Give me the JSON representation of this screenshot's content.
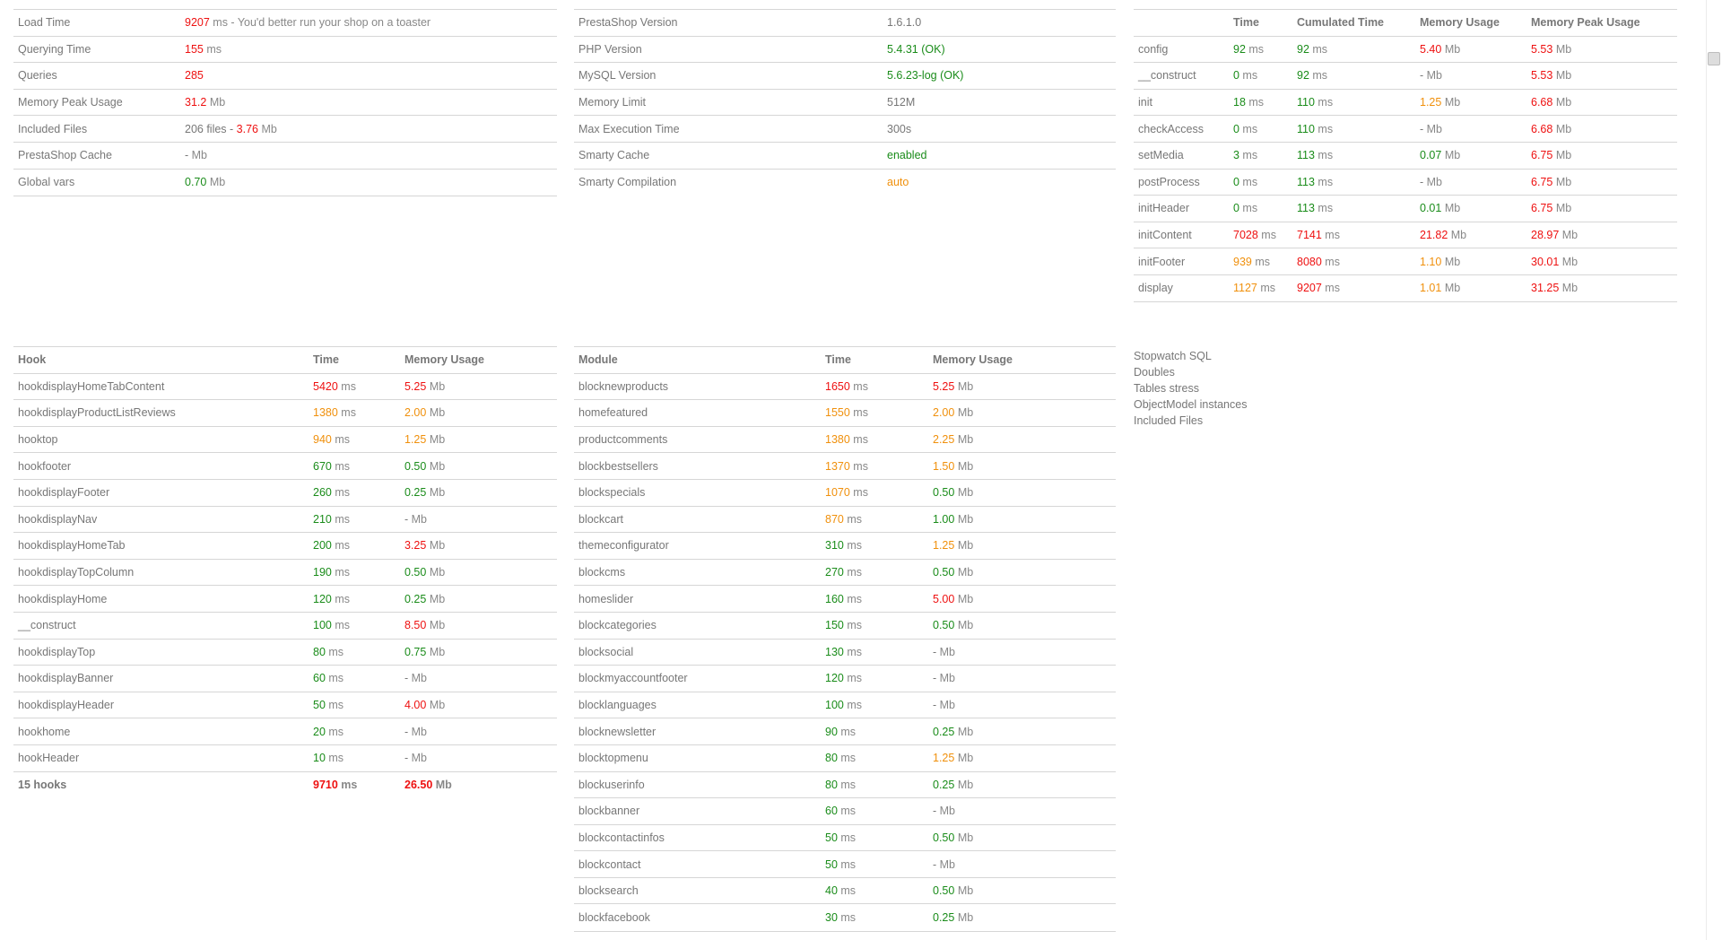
{
  "colors": {
    "good": "#1a8c1a",
    "warn": "#f0900c",
    "bad": "#ee1111",
    "text": "#777777",
    "border": "#d6d6d6"
  },
  "summary": [
    {
      "label": "Load Time",
      "value": "9207",
      "status": "bad",
      "unit": " ms - You'd better run your shop on a toaster"
    },
    {
      "label": "Querying Time",
      "value": "155",
      "status": "bad",
      "unit": " ms"
    },
    {
      "label": "Queries",
      "value": "285",
      "status": "bad",
      "unit": ""
    },
    {
      "label": "Memory Peak Usage",
      "value": "31.2",
      "status": "bad",
      "unit": " Mb"
    },
    {
      "label": "Included Files",
      "prefix": "206 files - ",
      "value": "3.76",
      "status": "bad",
      "unit": " Mb"
    },
    {
      "label": "PrestaShop Cache",
      "value": "-",
      "status": "none",
      "unit": " Mb"
    },
    {
      "label": "Global vars",
      "value": "0.70",
      "status": "good",
      "unit": " Mb"
    }
  ],
  "config": [
    {
      "label": "PrestaShop Version",
      "value": "1.6.1.0",
      "status": "none"
    },
    {
      "label": "PHP Version",
      "value": "5.4.31 (OK)",
      "status": "good"
    },
    {
      "label": "MySQL Version",
      "value": "5.6.23-log (OK)",
      "status": "good"
    },
    {
      "label": "Memory Limit",
      "value": "512M",
      "status": "none"
    },
    {
      "label": "Max Execution Time",
      "value": "300s",
      "status": "none"
    },
    {
      "label": "Smarty Cache",
      "value": "enabled",
      "status": "good"
    },
    {
      "label": "Smarty Compilation",
      "value": "auto",
      "status": "warn"
    }
  ],
  "steps": {
    "headers": [
      "",
      "Time",
      "Cumulated Time",
      "Memory Usage",
      "Memory Peak Usage"
    ],
    "rows": [
      {
        "name": "config",
        "time": "92",
        "time_s": "good",
        "cum": "92",
        "cum_s": "good",
        "mem": "5.40",
        "mem_s": "bad",
        "peak": "5.53",
        "peak_s": "bad"
      },
      {
        "name": "__construct",
        "time": "0",
        "time_s": "good",
        "cum": "92",
        "cum_s": "good",
        "mem": "-",
        "mem_s": "none",
        "peak": "5.53",
        "peak_s": "bad"
      },
      {
        "name": "init",
        "time": "18",
        "time_s": "good",
        "cum": "110",
        "cum_s": "good",
        "mem": "1.25",
        "mem_s": "warn",
        "peak": "6.68",
        "peak_s": "bad"
      },
      {
        "name": "checkAccess",
        "time": "0",
        "time_s": "good",
        "cum": "110",
        "cum_s": "good",
        "mem": "-",
        "mem_s": "none",
        "peak": "6.68",
        "peak_s": "bad"
      },
      {
        "name": "setMedia",
        "time": "3",
        "time_s": "good",
        "cum": "113",
        "cum_s": "good",
        "mem": "0.07",
        "mem_s": "good",
        "peak": "6.75",
        "peak_s": "bad"
      },
      {
        "name": "postProcess",
        "time": "0",
        "time_s": "good",
        "cum": "113",
        "cum_s": "good",
        "mem": "-",
        "mem_s": "none",
        "peak": "6.75",
        "peak_s": "bad"
      },
      {
        "name": "initHeader",
        "time": "0",
        "time_s": "good",
        "cum": "113",
        "cum_s": "good",
        "mem": "0.01",
        "mem_s": "good",
        "peak": "6.75",
        "peak_s": "bad"
      },
      {
        "name": "initContent",
        "time": "7028",
        "time_s": "bad",
        "cum": "7141",
        "cum_s": "bad",
        "mem": "21.82",
        "mem_s": "bad",
        "peak": "28.97",
        "peak_s": "bad"
      },
      {
        "name": "initFooter",
        "time": "939",
        "time_s": "warn",
        "cum": "8080",
        "cum_s": "bad",
        "mem": "1.10",
        "mem_s": "warn",
        "peak": "30.01",
        "peak_s": "bad"
      },
      {
        "name": "display",
        "time": "1127",
        "time_s": "warn",
        "cum": "9207",
        "cum_s": "bad",
        "mem": "1.01",
        "mem_s": "warn",
        "peak": "31.25",
        "peak_s": "bad"
      }
    ]
  },
  "hooks": {
    "headers": [
      "Hook",
      "Time",
      "Memory Usage"
    ],
    "rows": [
      {
        "name": "hookdisplayHomeTabContent",
        "time": "5420",
        "time_s": "bad",
        "mem": "5.25",
        "mem_s": "bad"
      },
      {
        "name": "hookdisplayProductListReviews",
        "time": "1380",
        "time_s": "warn",
        "mem": "2.00",
        "mem_s": "warn"
      },
      {
        "name": "hooktop",
        "time": "940",
        "time_s": "warn",
        "mem": "1.25",
        "mem_s": "warn"
      },
      {
        "name": "hookfooter",
        "time": "670",
        "time_s": "good",
        "mem": "0.50",
        "mem_s": "good"
      },
      {
        "name": "hookdisplayFooter",
        "time": "260",
        "time_s": "good",
        "mem": "0.25",
        "mem_s": "good"
      },
      {
        "name": "hookdisplayNav",
        "time": "210",
        "time_s": "good",
        "mem": "-",
        "mem_s": "none"
      },
      {
        "name": "hookdisplayHomeTab",
        "time": "200",
        "time_s": "good",
        "mem": "3.25",
        "mem_s": "bad"
      },
      {
        "name": "hookdisplayTopColumn",
        "time": "190",
        "time_s": "good",
        "mem": "0.50",
        "mem_s": "good"
      },
      {
        "name": "hookdisplayHome",
        "time": "120",
        "time_s": "good",
        "mem": "0.25",
        "mem_s": "good"
      },
      {
        "name": "__construct",
        "time": "100",
        "time_s": "good",
        "mem": "8.50",
        "mem_s": "bad"
      },
      {
        "name": "hookdisplayTop",
        "time": "80",
        "time_s": "good",
        "mem": "0.75",
        "mem_s": "good"
      },
      {
        "name": "hookdisplayBanner",
        "time": "60",
        "time_s": "good",
        "mem": "-",
        "mem_s": "none"
      },
      {
        "name": "hookdisplayHeader",
        "time": "50",
        "time_s": "good",
        "mem": "4.00",
        "mem_s": "bad"
      },
      {
        "name": "hookhome",
        "time": "20",
        "time_s": "good",
        "mem": "-",
        "mem_s": "none"
      },
      {
        "name": "hookHeader",
        "time": "10",
        "time_s": "good",
        "mem": "-",
        "mem_s": "none"
      }
    ],
    "total": {
      "name": "15 hooks",
      "time": "9710",
      "time_s": "bad",
      "mem": "26.50",
      "mem_s": "bad"
    }
  },
  "modules": {
    "headers": [
      "Module",
      "Time",
      "Memory Usage"
    ],
    "rows": [
      {
        "name": "blocknewproducts",
        "time": "1650",
        "time_s": "bad",
        "mem": "5.25",
        "mem_s": "bad"
      },
      {
        "name": "homefeatured",
        "time": "1550",
        "time_s": "warn",
        "mem": "2.00",
        "mem_s": "warn"
      },
      {
        "name": "productcomments",
        "time": "1380",
        "time_s": "warn",
        "mem": "2.25",
        "mem_s": "warn"
      },
      {
        "name": "blockbestsellers",
        "time": "1370",
        "time_s": "warn",
        "mem": "1.50",
        "mem_s": "warn"
      },
      {
        "name": "blockspecials",
        "time": "1070",
        "time_s": "warn",
        "mem": "0.50",
        "mem_s": "good"
      },
      {
        "name": "blockcart",
        "time": "870",
        "time_s": "warn",
        "mem": "1.00",
        "mem_s": "good"
      },
      {
        "name": "themeconfigurator",
        "time": "310",
        "time_s": "good",
        "mem": "1.25",
        "mem_s": "warn"
      },
      {
        "name": "blockcms",
        "time": "270",
        "time_s": "good",
        "mem": "0.50",
        "mem_s": "good"
      },
      {
        "name": "homeslider",
        "time": "160",
        "time_s": "good",
        "mem": "5.00",
        "mem_s": "bad"
      },
      {
        "name": "blockcategories",
        "time": "150",
        "time_s": "good",
        "mem": "0.50",
        "mem_s": "good"
      },
      {
        "name": "blocksocial",
        "time": "130",
        "time_s": "good",
        "mem": "-",
        "mem_s": "none"
      },
      {
        "name": "blockmyaccountfooter",
        "time": "120",
        "time_s": "good",
        "mem": "-",
        "mem_s": "none"
      },
      {
        "name": "blocklanguages",
        "time": "100",
        "time_s": "good",
        "mem": "-",
        "mem_s": "none"
      },
      {
        "name": "blocknewsletter",
        "time": "90",
        "time_s": "good",
        "mem": "0.25",
        "mem_s": "good"
      },
      {
        "name": "blocktopmenu",
        "time": "80",
        "time_s": "good",
        "mem": "1.25",
        "mem_s": "warn"
      },
      {
        "name": "blockuserinfo",
        "time": "80",
        "time_s": "good",
        "mem": "0.25",
        "mem_s": "good"
      },
      {
        "name": "blockbanner",
        "time": "60",
        "time_s": "good",
        "mem": "-",
        "mem_s": "none"
      },
      {
        "name": "blockcontactinfos",
        "time": "50",
        "time_s": "good",
        "mem": "0.50",
        "mem_s": "good"
      },
      {
        "name": "blockcontact",
        "time": "50",
        "time_s": "good",
        "mem": "-",
        "mem_s": "none"
      },
      {
        "name": "blocksearch",
        "time": "40",
        "time_s": "good",
        "mem": "0.50",
        "mem_s": "good"
      },
      {
        "name": "blockfacebook",
        "time": "30",
        "time_s": "good",
        "mem": "0.25",
        "mem_s": "good"
      }
    ]
  },
  "units": {
    "ms": " ms",
    "mb": " Mb"
  },
  "links": [
    "Stopwatch SQL",
    "Doubles",
    "Tables stress",
    "ObjectModel instances",
    "Included Files"
  ]
}
